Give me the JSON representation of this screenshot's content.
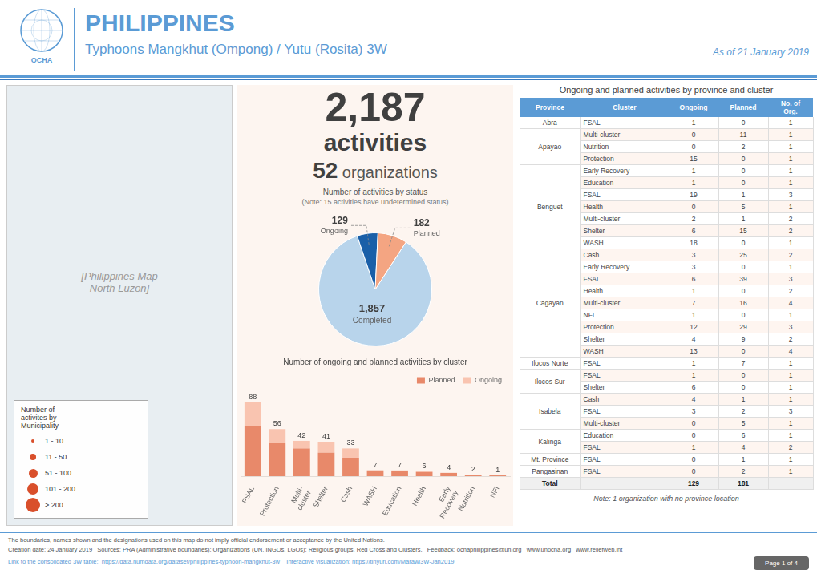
{
  "title": "PHILIPPINES",
  "subtitle": "Typhoons Mangkhut (Ompong) / Yutu (Rosita) 3W",
  "color": "#5b9bd5",
  "page": {
    "logo": "OCHA",
    "date": "As of 21 January 2019",
    "map_note": "[Philippines Map\nNorth Luzon]",
    "headline": [
      [
        "2,187",
        "activities"
      ],
      [
        "52",
        " organizations"
      ]
    ],
    "footer": [
      "The boundaries, names shown and the designations used on this map do not imply official endorsement or acceptance by the United Nations.",
      "Creation date: 24 January 2019   Sources: PRA (Administrative boundaries); Organizations (UN, INGOs, LGOs); Religious groups, Red Cross and Clusters.   Feedback: ochaphilippines@un.org   www.unocha.org   www.reliefweb.int",
      "Link to the consolidated 3W table:  https://data.humdata.org/dataset/philippines-typhoon-mangkhut-3w    Interactive visualization: https://tinyurl.com/Marawi3W-Jan2019"
    ],
    "page_label": "Page 1 of 4"
  },
  "map_legend": {
    "title": "Number of\nactivites by\nMunicipality",
    "labels": [
      "1 - 10",
      "11 - 50",
      "51 - 100",
      "101 - 200",
      "> 200"
    ],
    "color": "#d94f2b"
  },
  "chart_data": [
    {
      "type": "pie",
      "title": "Number of activities by status",
      "subtitle": "(Note: 15 activities have undetermined status)",
      "categories": [
        "Completed",
        "Ongoing",
        "Planned"
      ],
      "values": [
        1857,
        129,
        182
      ],
      "value_labels": [
        "1,857",
        "129",
        "182"
      ],
      "colors": [
        "#b8d4eb",
        "#1a5fa8",
        "#f4a582"
      ],
      "data_labels": true
    },
    {
      "type": "bar",
      "title": "Number of ongoing and planned activities by cluster",
      "stacked": true,
      "categories": [
        "FSAL",
        "Protection",
        "Multi-\ncluster",
        "Shelter",
        "Cash",
        "WASH",
        "Education",
        "Health",
        "Early\nRecovery",
        "Nutrition",
        "NFI"
      ],
      "series": [
        {
          "name": "Planned",
          "color": "#e8896a",
          "values": [
            59,
            40,
            33,
            28,
            22,
            7,
            6,
            5,
            4,
            2,
            1
          ]
        },
        {
          "name": "Ongoing",
          "color": "#f9c4b0",
          "values": [
            29,
            16,
            9,
            13,
            11,
            0,
            1,
            1,
            0,
            0,
            0
          ]
        }
      ],
      "totals": [
        88,
        56,
        42,
        41,
        33,
        7,
        7,
        6,
        4,
        2,
        1
      ],
      "ylim": [
        0,
        100
      ],
      "legend": "upper right",
      "grid": false,
      "tick_labels": "x"
    },
    {
      "type": "table",
      "title": "Ongoing and planned activities by province and cluster",
      "columns": [
        "Province",
        "Cluster",
        "Ongoing",
        "Planned",
        "No. of\nOrg."
      ],
      "rows": [
        [
          "Abra",
          "FSAL",
          1,
          0,
          1
        ],
        [
          "Apayao",
          "Multi-cluster",
          0,
          11,
          1
        ],
        [
          "Apayao",
          "Nutrition",
          0,
          2,
          1
        ],
        [
          "Apayao",
          "Protection",
          15,
          0,
          1
        ],
        [
          "Benguet",
          "Early Recovery",
          1,
          0,
          1
        ],
        [
          "Benguet",
          "Education",
          1,
          0,
          1
        ],
        [
          "Benguet",
          "FSAL",
          19,
          1,
          3
        ],
        [
          "Benguet",
          "Health",
          0,
          5,
          1
        ],
        [
          "Benguet",
          "Multi-cluster",
          2,
          1,
          2
        ],
        [
          "Benguet",
          "Shelter",
          6,
          15,
          2
        ],
        [
          "Benguet",
          "WASH",
          18,
          0,
          1
        ],
        [
          "Cagayan",
          "Cash",
          3,
          25,
          2
        ],
        [
          "Cagayan",
          "Early Recovery",
          3,
          0,
          1
        ],
        [
          "Cagayan",
          "FSAL",
          6,
          39,
          3
        ],
        [
          "Cagayan",
          "Health",
          1,
          0,
          2
        ],
        [
          "Cagayan",
          "Multi-cluster",
          7,
          16,
          4
        ],
        [
          "Cagayan",
          "NFI",
          1,
          0,
          1
        ],
        [
          "Cagayan",
          "Protection",
          12,
          29,
          3
        ],
        [
          "Cagayan",
          "Shelter",
          4,
          9,
          2
        ],
        [
          "Cagayan",
          "WASH",
          13,
          0,
          4
        ],
        [
          "Ilocos Norte",
          "FSAL",
          1,
          7,
          1
        ],
        [
          "Ilocos Sur",
          "FSAL",
          1,
          0,
          1
        ],
        [
          "Ilocos Sur",
          "Shelter",
          6,
          0,
          1
        ],
        [
          "Isabela",
          "Cash",
          4,
          1,
          1
        ],
        [
          "Isabela",
          "FSAL",
          3,
          2,
          3
        ],
        [
          "Isabela",
          "Multi-cluster",
          0,
          5,
          1
        ],
        [
          "Kalinga",
          "Education",
          0,
          6,
          1
        ],
        [
          "Kalinga",
          "FSAL",
          1,
          4,
          2
        ],
        [
          "Mt. Province",
          "FSAL",
          0,
          1,
          1
        ],
        [
          "Pangasinan",
          "FSAL",
          0,
          2,
          1
        ],
        [
          "Total",
          null,
          129,
          181,
          null
        ]
      ],
      "note": "Note: 1 organization with no province location"
    }
  ]
}
